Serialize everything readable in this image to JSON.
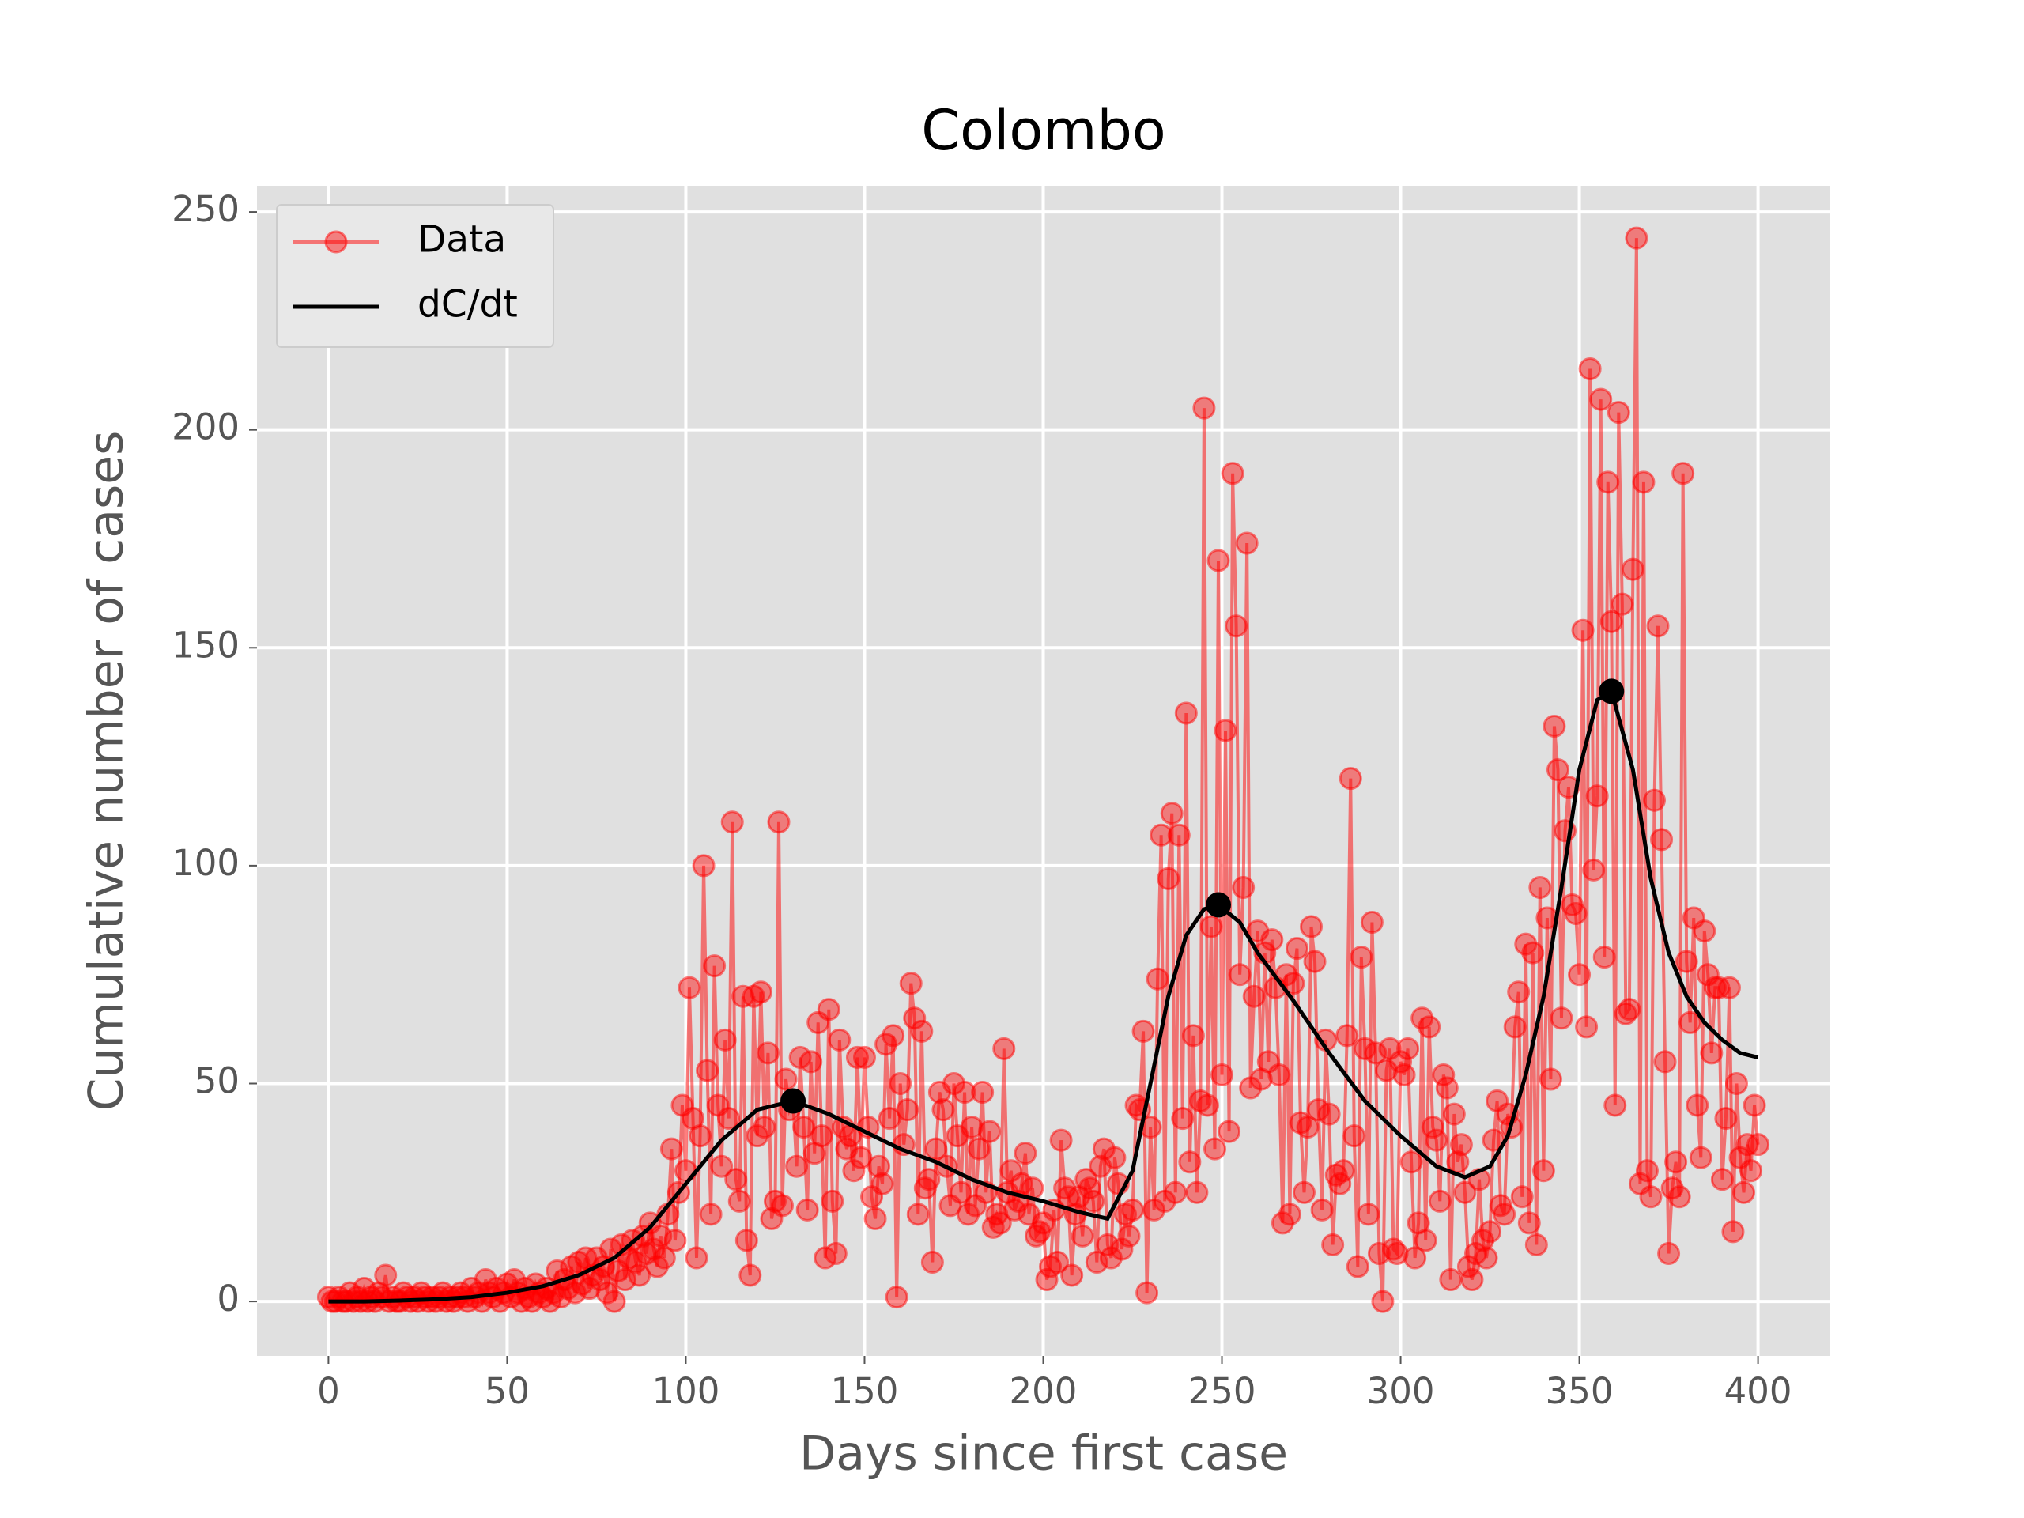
{
  "chart_data": {
    "type": "line",
    "title": "Colombo",
    "xlabel": "Days since first case",
    "ylabel": "Cumulative number of cases",
    "xlim": [
      -20,
      420
    ],
    "ylim": [
      -12.5,
      256
    ],
    "xticks": [
      0,
      50,
      100,
      150,
      200,
      250,
      300,
      350,
      400
    ],
    "yticks": [
      0,
      50,
      100,
      150,
      200,
      250
    ],
    "grid": true,
    "legend": "upper left",
    "series": [
      {
        "name": "Data",
        "color": "#ff0000",
        "marker": true,
        "x": [
          0,
          1,
          2,
          3,
          4,
          5,
          6,
          7,
          8,
          9,
          10,
          11,
          12,
          13,
          14,
          15,
          16,
          17,
          18,
          19,
          20,
          21,
          22,
          23,
          24,
          25,
          26,
          27,
          28,
          29,
          30,
          31,
          32,
          33,
          34,
          35,
          36,
          37,
          38,
          39,
          40,
          41,
          42,
          43,
          44,
          45,
          46,
          47,
          48,
          49,
          50,
          51,
          52,
          53,
          54,
          55,
          56,
          57,
          58,
          59,
          60,
          61,
          62,
          63,
          64,
          65,
          66,
          67,
          68,
          69,
          70,
          71,
          72,
          73,
          74,
          75,
          76,
          77,
          78,
          79,
          80,
          81,
          82,
          83,
          84,
          85,
          86,
          87,
          88,
          89,
          90,
          91,
          92,
          93,
          94,
          95,
          96,
          97,
          98,
          99,
          100,
          101,
          102,
          103,
          104,
          105,
          106,
          107,
          108,
          109,
          110,
          111,
          112,
          113,
          114,
          115,
          116,
          117,
          118,
          119,
          120,
          121,
          122,
          123,
          124,
          125,
          126,
          127,
          128,
          129,
          130,
          131,
          132,
          133,
          134,
          135,
          136,
          137,
          138,
          139,
          140,
          141,
          142,
          143,
          144,
          145,
          146,
          147,
          148,
          149,
          150,
          151,
          152,
          153,
          154,
          155,
          156,
          157,
          158,
          159,
          160,
          161,
          162,
          163,
          164,
          165,
          166,
          167,
          168,
          169,
          170,
          171,
          172,
          173,
          174,
          175,
          176,
          177,
          178,
          179,
          180,
          181,
          182,
          183,
          184,
          185,
          186,
          187,
          188,
          189,
          190,
          191,
          192,
          193,
          194,
          195,
          196,
          197,
          198,
          199,
          200,
          201,
          202,
          203,
          204,
          205,
          206,
          207,
          208,
          209,
          210,
          211,
          212,
          213,
          214,
          215,
          216,
          217,
          218,
          219,
          220,
          221,
          222,
          223,
          224,
          225,
          226,
          227,
          228,
          229,
          230,
          231,
          232,
          233,
          234,
          235,
          236,
          237,
          238,
          239,
          240,
          241,
          242,
          243,
          244,
          245,
          246,
          247,
          248,
          249,
          250,
          251,
          252,
          253,
          254,
          255,
          256,
          257,
          258,
          259,
          260,
          261,
          262,
          263,
          264,
          265,
          266,
          267,
          268,
          269,
          270,
          271,
          272,
          273,
          274,
          275,
          276,
          277,
          278,
          279,
          280,
          281,
          282,
          283,
          284,
          285,
          286,
          287,
          288,
          289,
          290,
          291,
          292,
          293,
          294,
          295,
          296,
          297,
          298,
          299,
          300,
          301,
          302,
          303,
          304,
          305,
          306,
          307,
          308,
          309,
          310,
          311,
          312,
          313,
          314,
          315,
          316,
          317,
          318,
          319,
          320,
          321,
          322,
          323,
          324,
          325,
          326,
          327,
          328,
          329,
          330,
          331,
          332,
          333,
          334,
          335,
          336,
          337,
          338,
          339,
          340,
          341,
          342,
          343,
          344,
          345,
          346,
          347,
          348,
          349,
          350,
          351,
          352,
          353,
          354,
          355,
          356,
          357,
          358,
          359,
          360,
          361,
          362,
          363,
          364,
          365,
          366,
          367,
          368,
          369,
          370,
          371,
          372,
          373,
          374,
          375,
          376,
          377,
          378,
          379,
          380,
          381,
          382,
          383,
          384,
          385,
          386,
          387,
          388,
          389,
          390,
          391,
          392,
          393,
          394,
          395,
          396,
          397,
          398,
          399,
          400
        ],
        "values": [
          1,
          0,
          0,
          1,
          0,
          0,
          2,
          0,
          1,
          0,
          3,
          0,
          1,
          0,
          2,
          1,
          6,
          0,
          1,
          0,
          0,
          2,
          1,
          0,
          1,
          0,
          2,
          1,
          0,
          1,
          0,
          1,
          2,
          0,
          1,
          0,
          1,
          2,
          1,
          0,
          3,
          1,
          2,
          0,
          5,
          2,
          1,
          3,
          0,
          2,
          4,
          1,
          5,
          2,
          0,
          3,
          1,
          0,
          4,
          2,
          1,
          3,
          0,
          2,
          7,
          1,
          5,
          3,
          8,
          2,
          9,
          4,
          10,
          3,
          6,
          10,
          5,
          8,
          2,
          12,
          0,
          7,
          13,
          5,
          10,
          14,
          9,
          6,
          15,
          11,
          18,
          12,
          8,
          15,
          10,
          20,
          35,
          14,
          25,
          45,
          30,
          72,
          42,
          10,
          38,
          100,
          53,
          20,
          77,
          45,
          31,
          60,
          42,
          110,
          28,
          23,
          70,
          14,
          6,
          70,
          38,
          71,
          40,
          57,
          19,
          23,
          110,
          22,
          51,
          44,
          46,
          31,
          56,
          40,
          21,
          55,
          34,
          64,
          38,
          10,
          67,
          23,
          11,
          60,
          40,
          35,
          38,
          30,
          56,
          33,
          56,
          40,
          24,
          19,
          31,
          27,
          59,
          42,
          61,
          1,
          50,
          36,
          44,
          73,
          65,
          20,
          62,
          26,
          28,
          9,
          35,
          48,
          44,
          31,
          22,
          50,
          38,
          25,
          48,
          20,
          40,
          22,
          35,
          48,
          25,
          39,
          17,
          20,
          18,
          58,
          25,
          30,
          21,
          23,
          27,
          34,
          20,
          26,
          15,
          16,
          18,
          5,
          8,
          21,
          9,
          37,
          26,
          24,
          6,
          20,
          24,
          15,
          28,
          26,
          23,
          9,
          31,
          35,
          13,
          10,
          33,
          27,
          12,
          20,
          15,
          21,
          45,
          44,
          62,
          2,
          40,
          21,
          74,
          107,
          23,
          97,
          112,
          25,
          107,
          42,
          135,
          32,
          61,
          25,
          46,
          205,
          45,
          86,
          35,
          170,
          52,
          131,
          39,
          190,
          155,
          75,
          95,
          174,
          49,
          70,
          85,
          51,
          80,
          55,
          83,
          72,
          52,
          18,
          75,
          20,
          73,
          81,
          41,
          25,
          40,
          86,
          78,
          44,
          21,
          60,
          43,
          13,
          29,
          27,
          30,
          61,
          120,
          38,
          8,
          79,
          58,
          20,
          87,
          57,
          11,
          0,
          53,
          58,
          12,
          11,
          55,
          52,
          58,
          32,
          10,
          18,
          65,
          14,
          63,
          40,
          37,
          23,
          52,
          49,
          5,
          43,
          32,
          36,
          25,
          8,
          5,
          11,
          28,
          14,
          10,
          16,
          37,
          46,
          22,
          20,
          43,
          40,
          63,
          71,
          24,
          82,
          18,
          80,
          13,
          95,
          30,
          88,
          51,
          132,
          122,
          65,
          108,
          118,
          91,
          89,
          75,
          154,
          63,
          214,
          99,
          116,
          207,
          79,
          188,
          156,
          45,
          204,
          160,
          66,
          67,
          168,
          244,
          27,
          188,
          30,
          24,
          115,
          155,
          106,
          55,
          11,
          26,
          32,
          24,
          190,
          78,
          64,
          88,
          45,
          33,
          85,
          75,
          57,
          72,
          72,
          28,
          42,
          72,
          16,
          50,
          33,
          25,
          36,
          30,
          45,
          36
        ]
      },
      {
        "name": "dC/dt",
        "color": "#000000",
        "marker": false,
        "x": [
          0,
          10,
          20,
          30,
          40,
          50,
          60,
          70,
          80,
          90,
          100,
          110,
          120,
          130,
          140,
          150,
          160,
          170,
          180,
          190,
          200,
          210,
          218,
          225,
          230,
          235,
          240,
          245,
          249,
          255,
          260,
          270,
          280,
          290,
          300,
          310,
          318,
          325,
          330,
          335,
          340,
          345,
          350,
          355,
          359,
          365,
          370,
          375,
          380,
          385,
          390,
          395,
          400
        ],
        "values": [
          0,
          0,
          0.2,
          0.5,
          1,
          2,
          3.5,
          6,
          10,
          17,
          27,
          37,
          44,
          46,
          43,
          39,
          35,
          32,
          28,
          25,
          23,
          20.5,
          19,
          30,
          50,
          70,
          84,
          90,
          91,
          87,
          80,
          69,
          57,
          46,
          38,
          31,
          28.5,
          31,
          38,
          52,
          70,
          95,
          122,
          138,
          140,
          122,
          97,
          80,
          70,
          64,
          60,
          57,
          56
        ]
      }
    ],
    "peaks": {
      "color": "#000000",
      "x": [
        130,
        249,
        359
      ],
      "values": [
        46,
        91,
        140
      ]
    }
  }
}
